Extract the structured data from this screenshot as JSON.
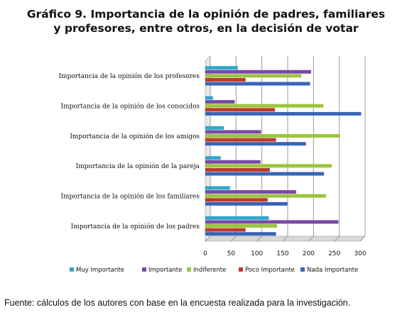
{
  "chart_data": {
    "type": "bar",
    "orientation": "horizontal",
    "title_line1": "Gráfico 9. Importancia de la opinión de padres, familiares",
    "title_line2": "y profesores, entre otros, en la decisión de votar",
    "categories": [
      "Importancia de la opinión de los profesores",
      "Importancia de la opinión de los conocidos",
      "Importancia de la opinión de los amigos",
      "Importancia de la opinión de la pareja",
      "Importancia de la opinión de los familiares",
      "Importancia de la opinión de los padres"
    ],
    "xlim": [
      0,
      300
    ],
    "xticks": [
      0,
      50,
      100,
      150,
      200,
      250,
      300
    ],
    "legend_position": "bottom",
    "series": [
      {
        "name": "Muy Importante",
        "color": "#31a8c9",
        "values": [
          63,
          15,
          36,
          30,
          48,
          123
        ]
      },
      {
        "name": "Importante",
        "color": "#7a49a5",
        "values": [
          205,
          57,
          108,
          107,
          176,
          258
        ]
      },
      {
        "name": "Indiferente",
        "color": "#9bc53d",
        "values": [
          186,
          229,
          261,
          245,
          234,
          139
        ]
      },
      {
        "name": "Poco Importante",
        "color": "#c0392b",
        "values": [
          78,
          135,
          137,
          125,
          121,
          78
        ]
      },
      {
        "name": "Nada Importante",
        "color": "#3a63b8",
        "values": [
          203,
          302,
          195,
          230,
          159,
          137
        ]
      }
    ]
  },
  "source_text": "Fuente: cálculos de los autores con base en la encuesta realizada para la investigación."
}
